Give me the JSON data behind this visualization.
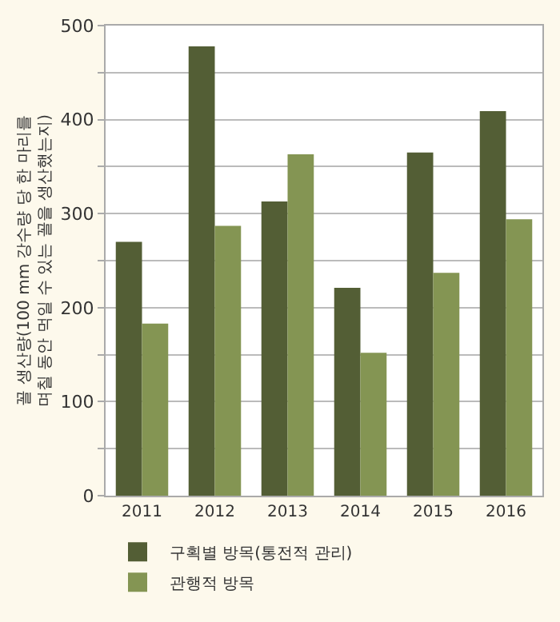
{
  "chart_data": {
    "type": "bar",
    "ylabel": "꼴 생산량(100 mm 강수량 당 한 마리를 며칠 동안 먹일 수 있는 꼴을 생산했는지)",
    "categories": [
      "2011",
      "2012",
      "2013",
      "2014",
      "2015",
      "2016"
    ],
    "series": [
      {
        "name": "구획별 방목(통전적 관리)",
        "color": "#535e35",
        "values": [
          270,
          478,
          313,
          221,
          365,
          409
        ]
      },
      {
        "name": "관행적 방목",
        "color": "#849553",
        "values": [
          183,
          287,
          363,
          152,
          237,
          294
        ]
      }
    ],
    "ylim": [
      0,
      500
    ],
    "yticks": [
      0,
      {
        "value": 50,
        "label": null
      },
      100,
      {
        "value": 150,
        "label": null
      },
      200,
      {
        "value": 250,
        "label": null
      },
      300,
      {
        "value": 350,
        "label": null
      },
      400,
      {
        "value": 450,
        "label": null
      },
      500
    ],
    "grid": "y",
    "legend": "bottom"
  }
}
